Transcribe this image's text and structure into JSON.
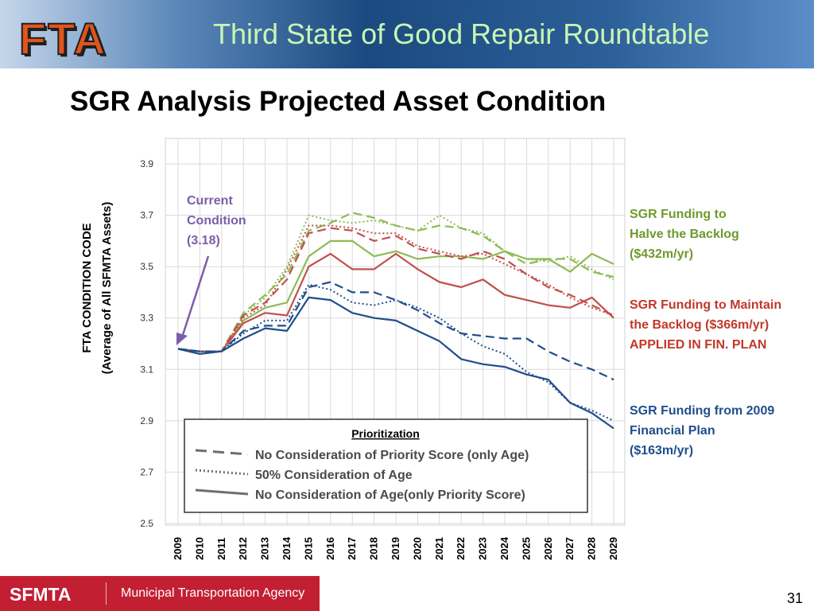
{
  "header": {
    "logo_text": "FTA",
    "title": "Third State of Good Repair Roundtable"
  },
  "slide_title": "SGR Analysis Projected Asset Condition",
  "annotation": {
    "lines": [
      "Current",
      "Condition",
      "(3.18)"
    ],
    "color": "#7a5ea8"
  },
  "right_labels": [
    {
      "lines": [
        "SGR Funding to",
        "Halve the Backlog",
        "($432m/yr)"
      ],
      "color": "#6f9a2c"
    },
    {
      "lines": [
        "SGR Funding to Maintain",
        "the Backlog ($366m/yr)",
        "APPLIED IN FIN. PLAN"
      ],
      "color": "#c0392b"
    },
    {
      "lines": [
        "SGR Funding from 2009",
        "Financial Plan",
        "($163m/yr)"
      ],
      "color": "#1f4e8c"
    }
  ],
  "legend": {
    "title": "Prioritization",
    "items": [
      {
        "label": "No Consideration of Priority Score (only Age)",
        "style": "dashed"
      },
      {
        "label": "50% Consideration of Age",
        "style": "dotted"
      },
      {
        "label": "No Consideration of Age(only Priority Score)",
        "style": "solid"
      }
    ]
  },
  "chart_data": {
    "type": "line",
    "ylabel_lines": [
      "FTA CONDITION CODE",
      "(Average of All SFMTA Assets)"
    ],
    "ylim": [
      2.5,
      3.9
    ],
    "yticks": [
      "3.9",
      "3.7",
      "3.5",
      "3.3",
      "3.1",
      "2.9",
      "2.7",
      "2.5"
    ],
    "ytick_values": [
      3.9,
      3.7,
      3.5,
      3.3,
      3.1,
      2.9,
      2.7,
      2.5
    ],
    "x": [
      "2009",
      "2010",
      "2011",
      "2012",
      "2013",
      "2014",
      "2015",
      "2016",
      "2017",
      "2018",
      "2019",
      "2020",
      "2021",
      "2022",
      "2023",
      "2024",
      "2025",
      "2026",
      "2027",
      "2028",
      "2029"
    ],
    "grid": true,
    "series": [
      {
        "funding": "($432m/yr)",
        "style": "solid",
        "color": "#8dbb55",
        "values": [
          3.18,
          3.17,
          3.17,
          3.29,
          3.34,
          3.36,
          3.54,
          3.6,
          3.6,
          3.54,
          3.56,
          3.53,
          3.54,
          3.54,
          3.53,
          3.56,
          3.53,
          3.53,
          3.48,
          3.55,
          3.51
        ]
      },
      {
        "funding": "($432m/yr)",
        "style": "dashed",
        "color": "#8dbb55",
        "values": [
          3.18,
          3.17,
          3.17,
          3.32,
          3.39,
          3.47,
          3.64,
          3.67,
          3.71,
          3.69,
          3.66,
          3.64,
          3.66,
          3.65,
          3.62,
          3.56,
          3.51,
          3.53,
          3.53,
          3.48,
          3.46
        ]
      },
      {
        "funding": "($432m/yr)",
        "style": "dotted",
        "color": "#8dbb55",
        "values": [
          3.18,
          3.17,
          3.17,
          3.31,
          3.38,
          3.5,
          3.7,
          3.68,
          3.67,
          3.68,
          3.66,
          3.64,
          3.7,
          3.65,
          3.63,
          3.56,
          3.53,
          3.52,
          3.54,
          3.49,
          3.45
        ]
      },
      {
        "funding": "($366m/yr)",
        "style": "solid",
        "color": "#c0504d",
        "values": [
          3.18,
          3.17,
          3.17,
          3.28,
          3.32,
          3.31,
          3.5,
          3.55,
          3.49,
          3.49,
          3.55,
          3.49,
          3.44,
          3.42,
          3.45,
          3.39,
          3.37,
          3.35,
          3.34,
          3.38,
          3.3
        ]
      },
      {
        "funding": "($366m/yr)",
        "style": "dashed",
        "color": "#c0504d",
        "values": [
          3.18,
          3.17,
          3.17,
          3.31,
          3.36,
          3.45,
          3.63,
          3.65,
          3.64,
          3.6,
          3.62,
          3.57,
          3.55,
          3.53,
          3.56,
          3.53,
          3.47,
          3.42,
          3.39,
          3.35,
          3.31
        ]
      },
      {
        "funding": "($366m/yr)",
        "style": "dotted",
        "color": "#c0504d",
        "values": [
          3.18,
          3.17,
          3.17,
          3.3,
          3.35,
          3.49,
          3.66,
          3.66,
          3.65,
          3.63,
          3.63,
          3.58,
          3.56,
          3.54,
          3.55,
          3.51,
          3.47,
          3.43,
          3.38,
          3.34,
          3.31
        ]
      },
      {
        "funding": "($163m/yr)",
        "style": "solid",
        "color": "#1f4e8c",
        "values": [
          3.18,
          3.16,
          3.17,
          3.22,
          3.26,
          3.25,
          3.38,
          3.37,
          3.32,
          3.3,
          3.29,
          3.25,
          3.21,
          3.14,
          3.12,
          3.11,
          3.08,
          3.06,
          2.97,
          2.93,
          2.87
        ]
      },
      {
        "funding": "($163m/yr)",
        "style": "dashed",
        "color": "#1f4e8c",
        "values": [
          3.18,
          3.17,
          3.17,
          3.25,
          3.27,
          3.27,
          3.42,
          3.44,
          3.4,
          3.4,
          3.37,
          3.33,
          3.28,
          3.24,
          3.23,
          3.22,
          3.22,
          3.17,
          3.13,
          3.1,
          3.06
        ]
      },
      {
        "funding": "($163m/yr)",
        "style": "dotted",
        "color": "#1f4e8c",
        "values": [
          3.18,
          3.17,
          3.17,
          3.24,
          3.29,
          3.29,
          3.43,
          3.41,
          3.36,
          3.35,
          3.37,
          3.34,
          3.3,
          3.24,
          3.19,
          3.16,
          3.09,
          3.05,
          2.97,
          2.94,
          2.9
        ]
      }
    ]
  },
  "footer": {
    "logo_text": "SFMTA",
    "agency": "Municipal Transportation Agency",
    "page_number": "31"
  }
}
